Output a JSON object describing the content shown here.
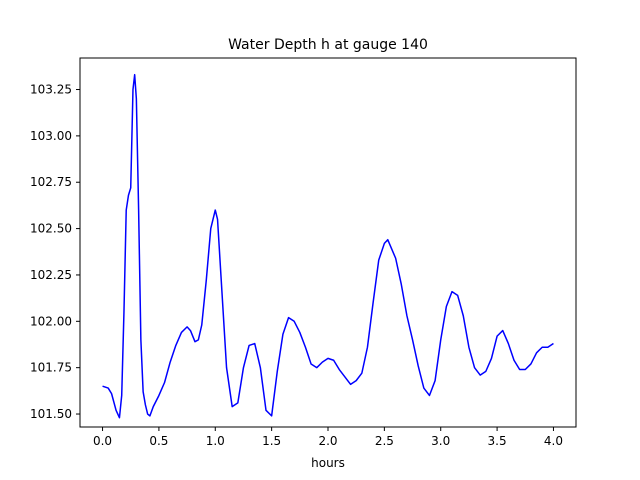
{
  "chart_data": {
    "type": "line",
    "title": "Water Depth h at gauge 140",
    "xlabel": "hours",
    "ylabel": "",
    "xlim": [
      -0.2,
      4.2
    ],
    "ylim": [
      101.43,
      103.42
    ],
    "xticks": [
      0.0,
      0.5,
      1.0,
      1.5,
      2.0,
      2.5,
      3.0,
      3.5,
      4.0
    ],
    "xtick_labels": [
      "0.0",
      "0.5",
      "1.0",
      "1.5",
      "2.0",
      "2.5",
      "3.0",
      "3.5",
      "4.0"
    ],
    "yticks": [
      101.5,
      101.75,
      102.0,
      102.25,
      102.5,
      102.75,
      103.0,
      103.25
    ],
    "ytick_labels": [
      "101.50",
      "101.75",
      "102.00",
      "102.25",
      "102.50",
      "102.75",
      "103.00",
      "103.25"
    ],
    "grid": false,
    "series": [
      {
        "color": "#0000ff",
        "x": [
          0.0,
          0.05,
          0.08,
          0.12,
          0.15,
          0.17,
          0.19,
          0.21,
          0.23,
          0.25,
          0.27,
          0.285,
          0.3,
          0.32,
          0.34,
          0.36,
          0.38,
          0.4,
          0.42,
          0.45,
          0.5,
          0.55,
          0.6,
          0.65,
          0.7,
          0.75,
          0.78,
          0.82,
          0.85,
          0.88,
          0.92,
          0.96,
          1.0,
          1.02,
          1.05,
          1.1,
          1.15,
          1.2,
          1.25,
          1.3,
          1.35,
          1.4,
          1.45,
          1.5,
          1.55,
          1.6,
          1.65,
          1.7,
          1.75,
          1.8,
          1.85,
          1.9,
          1.95,
          2.0,
          2.05,
          2.1,
          2.15,
          2.2,
          2.25,
          2.3,
          2.35,
          2.4,
          2.45,
          2.5,
          2.53,
          2.6,
          2.65,
          2.7,
          2.75,
          2.8,
          2.85,
          2.9,
          2.95,
          3.0,
          3.05,
          3.1,
          3.15,
          3.2,
          3.25,
          3.3,
          3.35,
          3.4,
          3.45,
          3.5,
          3.55,
          3.6,
          3.65,
          3.7,
          3.75,
          3.8,
          3.85,
          3.9,
          3.95,
          4.0
        ],
        "y": [
          101.65,
          101.64,
          101.61,
          101.52,
          101.48,
          101.6,
          102.05,
          102.6,
          102.68,
          102.72,
          103.25,
          103.33,
          103.2,
          102.6,
          101.9,
          101.62,
          101.55,
          101.5,
          101.49,
          101.54,
          101.6,
          101.67,
          101.78,
          101.87,
          101.94,
          101.97,
          101.95,
          101.89,
          101.9,
          101.98,
          102.22,
          102.5,
          102.6,
          102.55,
          102.25,
          101.75,
          101.54,
          101.56,
          101.75,
          101.87,
          101.88,
          101.75,
          101.52,
          101.49,
          101.73,
          101.93,
          102.02,
          102.0,
          101.94,
          101.86,
          101.77,
          101.75,
          101.78,
          101.8,
          101.79,
          101.74,
          101.7,
          101.66,
          101.68,
          101.72,
          101.86,
          102.1,
          102.33,
          102.42,
          102.44,
          102.34,
          102.2,
          102.03,
          101.9,
          101.76,
          101.64,
          101.6,
          101.68,
          101.9,
          102.08,
          102.16,
          102.14,
          102.03,
          101.86,
          101.75,
          101.71,
          101.73,
          101.8,
          101.92,
          101.95,
          101.88,
          101.79,
          101.74,
          101.74,
          101.77,
          101.83,
          101.86,
          101.86,
          101.88
        ]
      }
    ]
  }
}
